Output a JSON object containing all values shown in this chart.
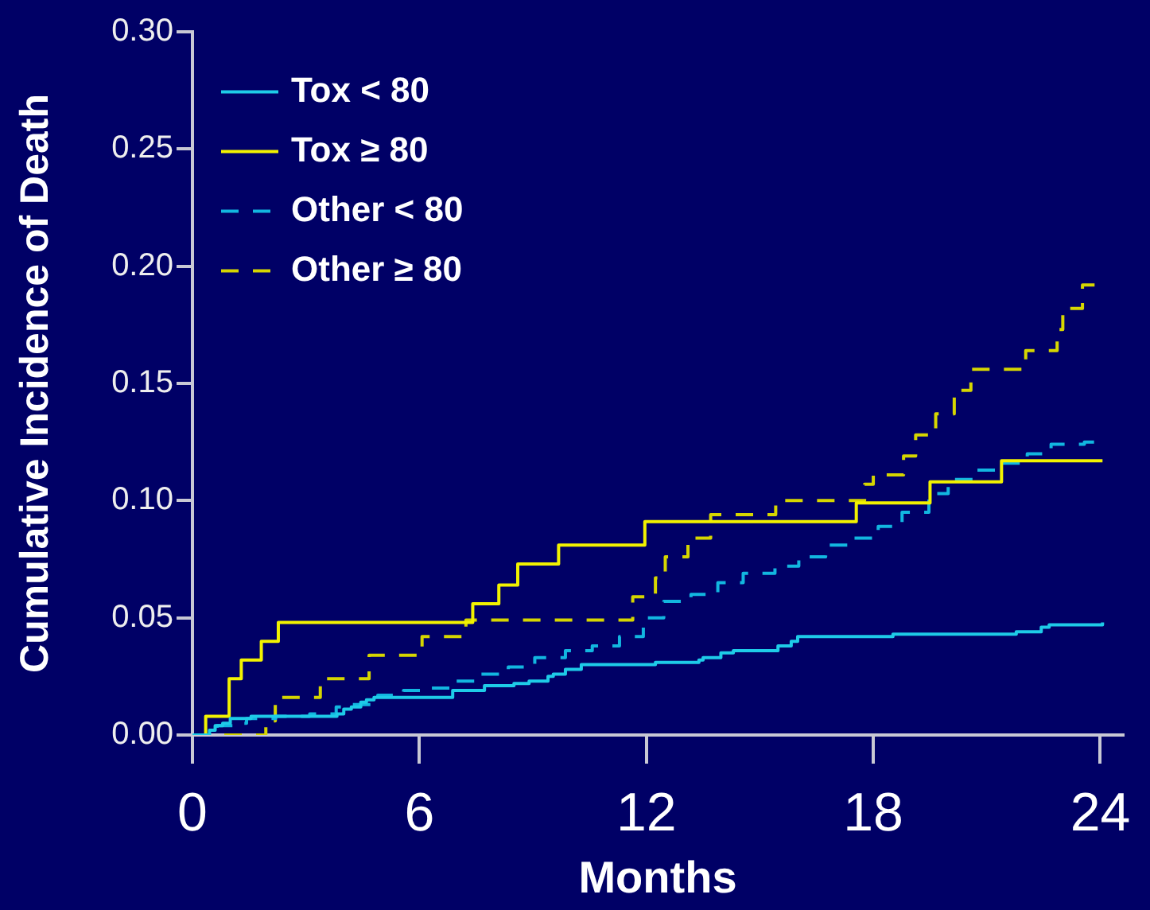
{
  "chart_data": {
    "type": "step",
    "xlabel": "Months",
    "ylabel": "Cumulative Incidence of Death",
    "xlim": [
      0,
      24.6
    ],
    "xticks": [
      0,
      6,
      12,
      18,
      24
    ],
    "ylim": [
      0,
      0.3
    ],
    "yticks": [
      {
        "value": 0,
        "label": "0.00"
      },
      0.05,
      {
        "value": 0.1,
        "label": "0.10"
      },
      0.15,
      {
        "value": 0.2,
        "label": "0.20"
      },
      0.25,
      {
        "value": 0.3,
        "label": "0.30"
      }
    ],
    "legend": "top left",
    "series": [
      {
        "name": "Tox < 80",
        "color": "#1ecbe8",
        "line_style": "solid",
        "x": [
          0,
          0.45,
          0.6,
          0.8,
          1.0,
          1.55,
          3.82,
          4.0,
          4.2,
          4.45,
          4.6,
          4.8,
          6.88,
          7.72,
          8.5,
          8.9,
          9.4,
          9.54,
          9.86,
          10.28,
          12.24,
          13.39,
          13.5,
          13.97,
          14.3,
          15.48,
          15.83,
          16.0,
          18.52,
          21.78,
          22.44,
          22.65,
          24.06
        ],
        "values": [
          0,
          0.002,
          0.004,
          0.005,
          0.007,
          0.008,
          0.009,
          0.011,
          0.012,
          0.014,
          0.015,
          0.016,
          0.019,
          0.021,
          0.022,
          0.023,
          0.025,
          0.026,
          0.028,
          0.03,
          0.031,
          0.032,
          0.033,
          0.035,
          0.036,
          0.038,
          0.04,
          0.042,
          0.043,
          0.044,
          0.046,
          0.047,
          0.048
        ]
      },
      {
        "name": "Tox ≥ 80",
        "color": "#f2f200",
        "line_style": "solid",
        "x": [
          0,
          0.35,
          0.97,
          1.29,
          1.82,
          2.27,
          7.41,
          8.1,
          8.6,
          9.68,
          11.96,
          17.55,
          19.5,
          21.39,
          24.06
        ],
        "values": [
          0,
          0.008,
          0.024,
          0.032,
          0.04,
          0.048,
          0.056,
          0.064,
          0.073,
          0.081,
          0.091,
          0.099,
          0.108,
          0.117,
          0.117
        ]
      },
      {
        "name": "Other < 80",
        "color": "#12b6e0",
        "line_style": "dashed",
        "x": [
          0,
          0.5,
          0.65,
          1.22,
          1.43,
          2.2,
          3.1,
          3.8,
          4.2,
          4.9,
          5.58,
          6.17,
          6.88,
          7.6,
          8.35,
          9.05,
          9.86,
          10.57,
          11.29,
          11.92,
          12.46,
          13.18,
          13.89,
          14.56,
          15.4,
          16.03,
          16.74,
          17.5,
          18.13,
          18.76,
          19.47,
          19.98,
          20.65,
          21.36,
          22.07,
          22.7,
          23.58,
          23.96
        ],
        "values": [
          0,
          0.002,
          0.004,
          0.005,
          0.007,
          0.008,
          0.009,
          0.012,
          0.013,
          0.017,
          0.019,
          0.02,
          0.023,
          0.026,
          0.029,
          0.033,
          0.036,
          0.038,
          0.042,
          0.05,
          0.057,
          0.06,
          0.065,
          0.069,
          0.072,
          0.076,
          0.081,
          0.084,
          0.089,
          0.095,
          0.103,
          0.109,
          0.113,
          0.116,
          0.12,
          0.124,
          0.125,
          0.125
        ]
      },
      {
        "name": "Other ≥ 80",
        "color": "#d6d600",
        "line_style": "dashed",
        "x": [
          0,
          1.94,
          2.19,
          3.38,
          4.67,
          6.07,
          7.23,
          11.64,
          12.24,
          12.5,
          13.1,
          13.7,
          15.42,
          17.77,
          18.0,
          18.8,
          19.12,
          19.65,
          20.14,
          20.58,
          22.03,
          22.86,
          23.01,
          23.53,
          23.85
        ],
        "values": [
          0,
          0.006,
          0.016,
          0.024,
          0.034,
          0.042,
          0.049,
          0.059,
          0.067,
          0.076,
          0.084,
          0.094,
          0.1,
          0.107,
          0.111,
          0.119,
          0.128,
          0.137,
          0.147,
          0.156,
          0.164,
          0.173,
          0.182,
          0.192,
          0.192
        ]
      }
    ]
  }
}
